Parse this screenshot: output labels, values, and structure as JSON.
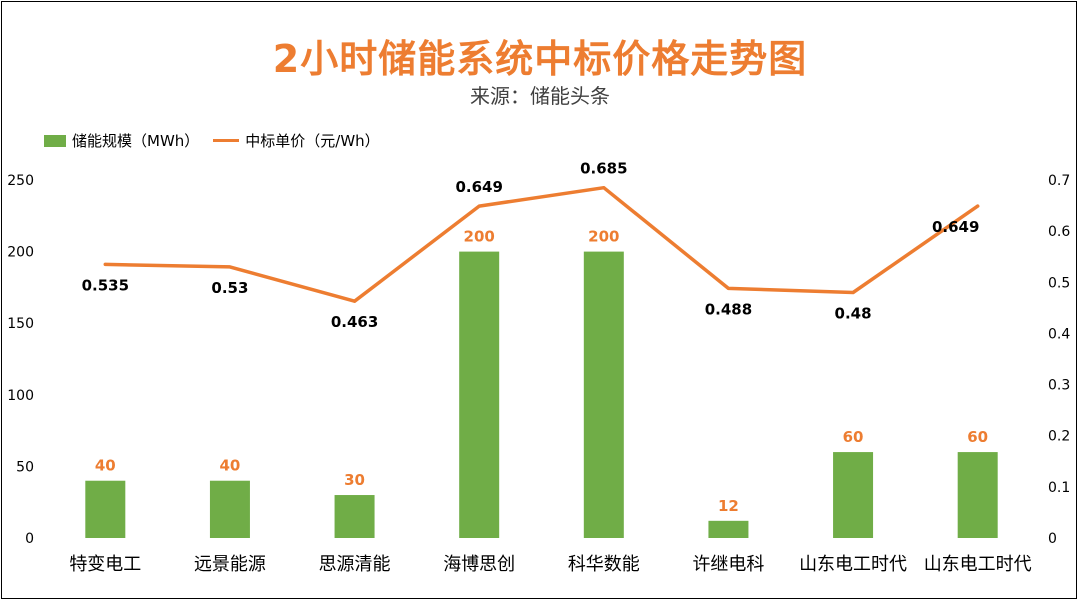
{
  "chart_data": {
    "type": "bar",
    "title": "2小时储能系统中标价格走势图",
    "subtitle": "来源：储能头条",
    "categories": [
      "特变电工",
      "远景能源",
      "思源清能",
      "海博思创",
      "科华数能",
      "许继电科",
      "山东电工时代",
      "山东电工时代"
    ],
    "series": [
      {
        "name": "储能规模（MWh）",
        "type": "bar",
        "axis": "left",
        "color": "#70AD47",
        "values": [
          40,
          40,
          30,
          200,
          200,
          12,
          60,
          60
        ]
      },
      {
        "name": "中标单价（元/Wh）",
        "type": "line",
        "axis": "right",
        "color": "#ED7D31",
        "values": [
          0.535,
          0.53,
          0.463,
          0.649,
          0.685,
          0.488,
          0.48,
          0.649
        ]
      }
    ],
    "bar_labels": [
      "40",
      "40",
      "30",
      "200",
      "200",
      "12",
      "60",
      "60"
    ],
    "line_labels": [
      "0.535",
      "0.53",
      "0.463",
      "0.649",
      "0.685",
      "0.488",
      "0.48",
      "0.649"
    ],
    "y_left": {
      "range": [
        0,
        250
      ],
      "ticks": [
        "0",
        "50",
        "100",
        "150",
        "200",
        "250"
      ]
    },
    "y_right": {
      "range": [
        0,
        0.7
      ],
      "ticks": [
        "0",
        "0.1",
        "0.2",
        "0.3",
        "0.4",
        "0.5",
        "0.6",
        "0.7"
      ]
    },
    "grid": false,
    "legend_position": "top-left"
  }
}
